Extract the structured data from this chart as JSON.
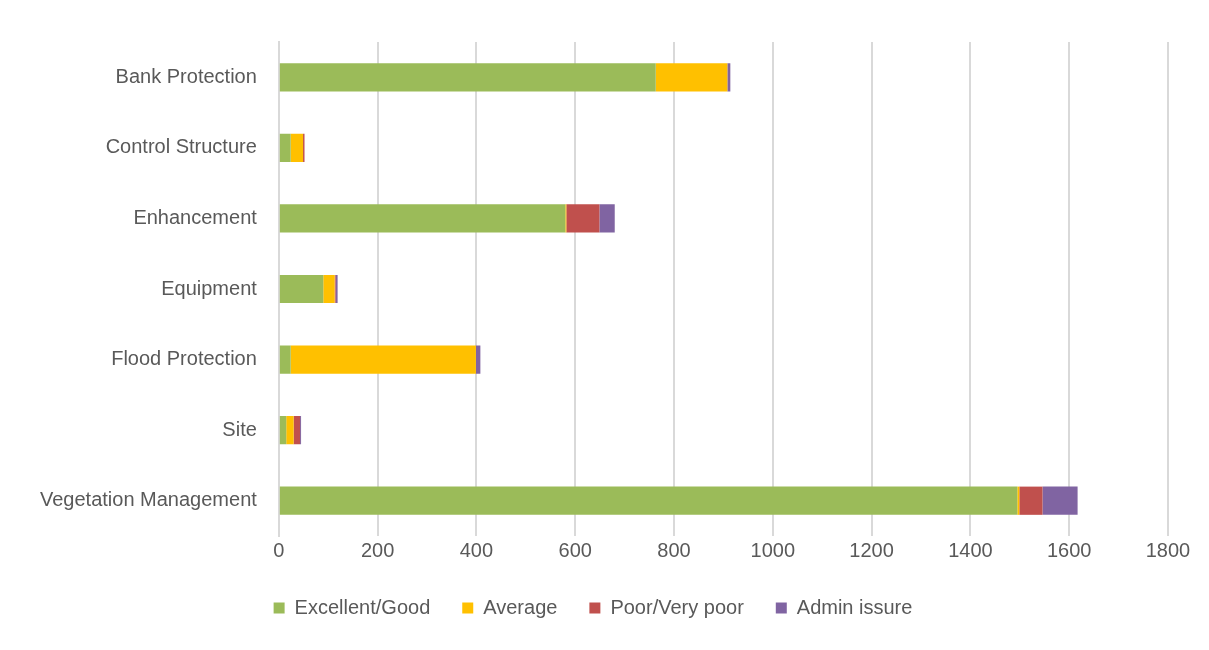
{
  "chart_data": {
    "type": "bar",
    "orientation": "horizontal",
    "stacked": true,
    "categories": [
      "Bank Protection",
      "Control Structure",
      "Enhancement",
      "Equipment",
      "Flood Protection",
      "Site",
      "Vegetation Management"
    ],
    "series": [
      {
        "name": "Excellent/Good",
        "color": "#9bbb59",
        "values": [
          763,
          24,
          580,
          90,
          24,
          15,
          1495
        ]
      },
      {
        "name": "Average",
        "color": "#ffc000",
        "values": [
          145,
          25,
          2,
          23,
          375,
          15,
          4
        ]
      },
      {
        "name": "Poor/Very poor",
        "color": "#c0504d",
        "values": [
          0,
          3,
          67,
          2,
          0,
          13,
          47
        ]
      },
      {
        "name": "Admin issure",
        "color": "#8064a2",
        "values": [
          6,
          0,
          31,
          4,
          9,
          2,
          71
        ]
      }
    ],
    "xlim": [
      0,
      1800
    ],
    "xticks": [
      0,
      200,
      400,
      600,
      800,
      1000,
      1200,
      1400,
      1600,
      1800
    ],
    "grid": "x",
    "legend": "bottom"
  }
}
